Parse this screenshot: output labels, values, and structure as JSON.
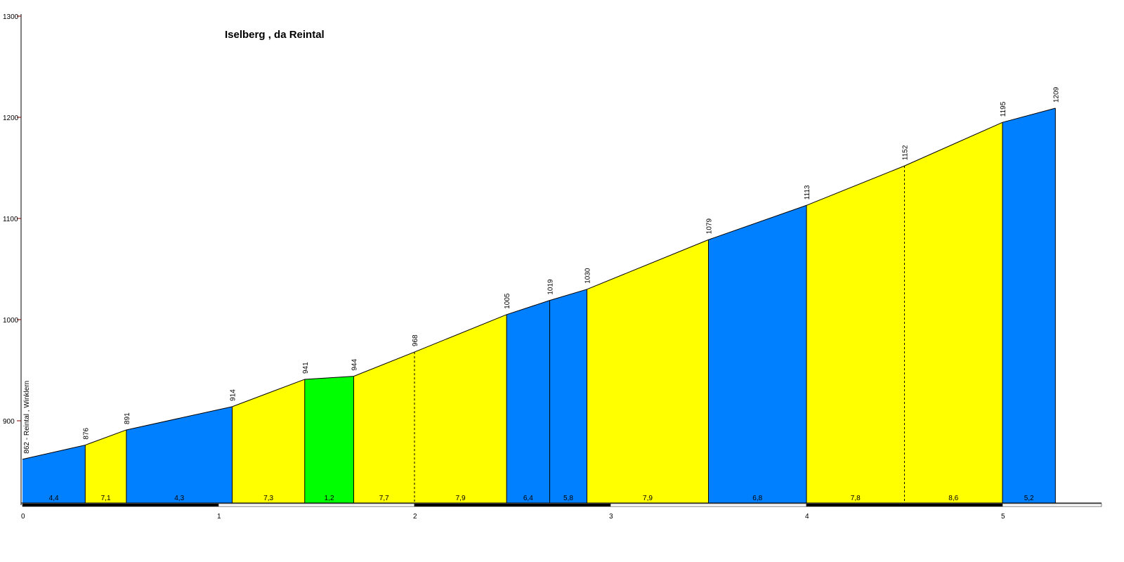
{
  "chart_data": {
    "type": "area",
    "title": "Iselberg , da Reintal",
    "start_label": "862 - Reintal , Winklern",
    "x_ticks": [
      "0",
      "1",
      "2",
      "3",
      "4",
      "5"
    ],
    "y_ticks": [
      "900",
      "1000",
      "1100",
      "1200",
      "1300"
    ],
    "xlim": [
      0,
      5.55
    ],
    "ylim": [
      820,
      1300
    ],
    "points": [
      {
        "km": 0.0,
        "elev": 862
      },
      {
        "km": 0.32,
        "elev": 876
      },
      {
        "km": 0.53,
        "elev": 891
      },
      {
        "km": 1.07,
        "elev": 914
      },
      {
        "km": 1.44,
        "elev": 941
      },
      {
        "km": 1.69,
        "elev": 944
      },
      {
        "km": 2.0,
        "elev": 968
      },
      {
        "km": 2.47,
        "elev": 1005
      },
      {
        "km": 2.69,
        "elev": 1019
      },
      {
        "km": 2.88,
        "elev": 1030
      },
      {
        "km": 3.5,
        "elev": 1079
      },
      {
        "km": 4.0,
        "elev": 1113
      },
      {
        "km": 4.5,
        "elev": 1152
      },
      {
        "km": 5.0,
        "elev": 1195
      },
      {
        "km": 5.27,
        "elev": 1209
      }
    ],
    "elevation_labels": [
      "876",
      "891",
      "914",
      "941",
      "944",
      "968",
      "1005",
      "1019",
      "1030",
      "1079",
      "1113",
      "1152",
      "1195",
      "1209"
    ],
    "segments": [
      {
        "gradient": "4,4",
        "color": "#0080ff",
        "dashed_end": false
      },
      {
        "gradient": "7,1",
        "color": "#ffff00",
        "dashed_end": false
      },
      {
        "gradient": "4,3",
        "color": "#0080ff",
        "dashed_end": false
      },
      {
        "gradient": "7,3",
        "color": "#ffff00",
        "dashed_end": false
      },
      {
        "gradient": "1,2",
        "color": "#00ff00",
        "dashed_end": false
      },
      {
        "gradient": "7,7",
        "color": "#ffff00",
        "dashed_end": true
      },
      {
        "gradient": "7,9",
        "color": "#ffff00",
        "dashed_end": false
      },
      {
        "gradient": "6,4",
        "color": "#0080ff",
        "dashed_end": false
      },
      {
        "gradient": "5,8",
        "color": "#0080ff",
        "dashed_end": false
      },
      {
        "gradient": "7,9",
        "color": "#ffff00",
        "dashed_end": false
      },
      {
        "gradient": "6,8",
        "color": "#0080ff",
        "dashed_end": false
      },
      {
        "gradient": "7,8",
        "color": "#ffff00",
        "dashed_end": true
      },
      {
        "gradient": "8,6",
        "color": "#ffff00",
        "dashed_end": false
      },
      {
        "gradient": "5,2",
        "color": "#0080ff",
        "dashed_end": false
      }
    ],
    "colors": {
      "axis": "#000000",
      "y_tick_labels": "#000000",
      "y_tick_marks": "#800000",
      "scale_bar_dark": "#000000",
      "scale_bar_light": "#ffffff"
    }
  }
}
